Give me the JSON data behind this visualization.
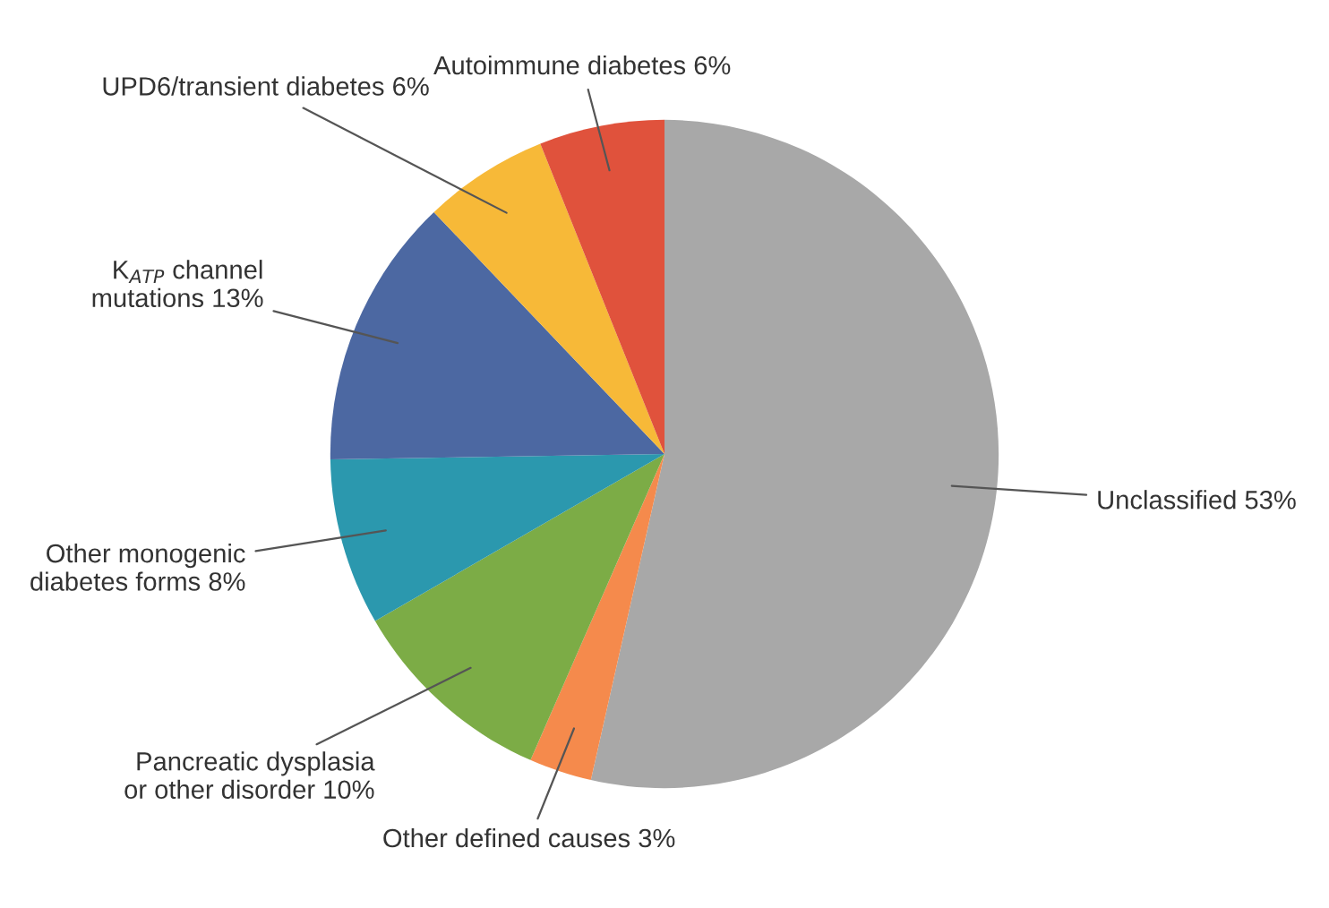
{
  "chart_data": {
    "type": "pie",
    "categories": [
      "Unclassified",
      "Other defined causes",
      "Pancreatic dysplasia\nor other disorder",
      "Other monogenic\ndiabetes forms",
      "K$_{ATP}$ channel\nmutations",
      "UPD6/transient diabetes",
      "Autoimmune diabetes"
    ],
    "values": [
      53,
      3,
      10,
      8,
      13,
      6,
      6
    ],
    "value_labels": [
      "53%",
      "3%",
      "10%",
      "8%",
      "13%",
      "6%",
      "6%"
    ],
    "colors": [
      "#a8a8a8",
      "#f58a4c",
      "#7cac46",
      "#2b98ae",
      "#4c68a2",
      "#f7b938",
      "#e0523c"
    ]
  }
}
